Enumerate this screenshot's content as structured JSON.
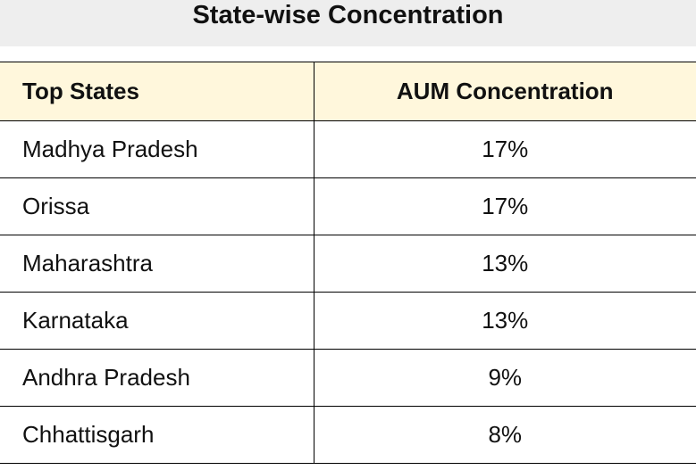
{
  "title": "State-wise Concentration",
  "table": {
    "headers": {
      "state": "Top States",
      "aum": "AUM Concentration"
    },
    "rows": [
      {
        "state": "Madhya Pradesh",
        "aum": "17%"
      },
      {
        "state": "Orissa",
        "aum": "17%"
      },
      {
        "state": "Maharashtra",
        "aum": "13%"
      },
      {
        "state": "Karnataka",
        "aum": "13%"
      },
      {
        "state": "Andhra Pradesh",
        "aum": "9%"
      },
      {
        "state": "Chhattisgarh",
        "aum": "8%"
      }
    ]
  },
  "colors": {
    "title_background": "#eeeeee",
    "header_background": "#fff7dc",
    "border": "#000000"
  }
}
